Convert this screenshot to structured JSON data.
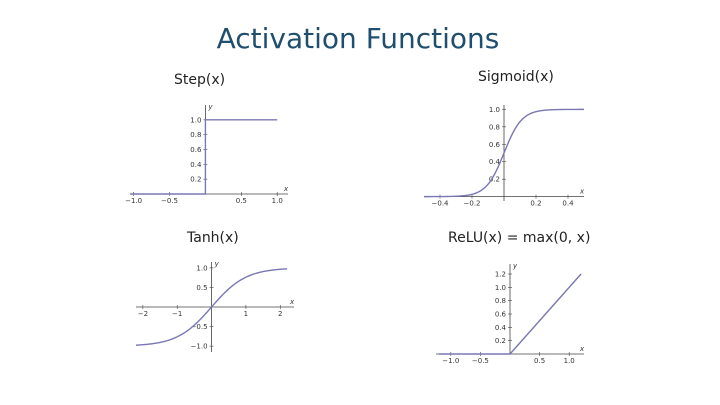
{
  "slide": {
    "title": "Activation Functions"
  },
  "colors": {
    "title": "#1f4e6e",
    "curve": "#7a78b4",
    "axis": "#444444"
  },
  "chart_data": [
    {
      "type": "line",
      "title": "Step(x)",
      "function": "step",
      "xlabel": "x",
      "ylabel": "y",
      "xlim": [
        -1.05,
        1.15
      ],
      "ylim": [
        0,
        1.2
      ],
      "xticks": [
        {
          "value": -1.0,
          "label": "−1.0"
        },
        {
          "value": -0.5,
          "label": "−0.5"
        },
        {
          "value": 0.5,
          "label": "0.5"
        },
        {
          "value": 1.0,
          "label": "1.0"
        }
      ],
      "yticks": [
        {
          "value": 0.2,
          "label": "0.2"
        },
        {
          "value": 0.4,
          "label": "0.4"
        },
        {
          "value": 0.6,
          "label": "0.6"
        },
        {
          "value": 0.8,
          "label": "0.8"
        },
        {
          "value": 1.0,
          "label": "1.0"
        }
      ],
      "domain": [
        -1.05,
        1.0
      ]
    },
    {
      "type": "line",
      "title": "Sigmoid(x)",
      "function": "sigmoid",
      "xlabel": "x",
      "ylabel": "",
      "xlim": [
        -0.5,
        0.5
      ],
      "ylim": [
        -0.05,
        1.05
      ],
      "xticks": [
        {
          "value": -0.4,
          "label": "−0.4"
        },
        {
          "value": -0.2,
          "label": "−0.2"
        },
        {
          "value": 0.2,
          "label": "0.2"
        },
        {
          "value": 0.4,
          "label": "0.4"
        }
      ],
      "yticks": [
        {
          "value": 0.2,
          "label": "0.2"
        },
        {
          "value": 0.4,
          "label": "0.4"
        },
        {
          "value": 0.6,
          "label": "0.6"
        },
        {
          "value": 0.8,
          "label": "0.8"
        },
        {
          "value": 1.0,
          "label": "1.0"
        }
      ],
      "domain": [
        -0.5,
        0.5
      ]
    },
    {
      "type": "line",
      "title": "Tanh(x)",
      "function": "tanh",
      "xlabel": "x",
      "ylabel": "y",
      "xlim": [
        -2.2,
        2.4
      ],
      "ylim": [
        -1.15,
        1.15
      ],
      "xticks": [
        {
          "value": -2,
          "label": "−2"
        },
        {
          "value": -1,
          "label": "−1"
        },
        {
          "value": 1,
          "label": "1"
        },
        {
          "value": 2,
          "label": "2"
        }
      ],
      "yticks": [
        {
          "value": -1.0,
          "label": "−1.0"
        },
        {
          "value": -0.5,
          "label": "−0.5"
        },
        {
          "value": 0.5,
          "label": "0.5"
        },
        {
          "value": 1.0,
          "label": "1.0"
        }
      ],
      "domain": [
        -2.2,
        2.2
      ]
    },
    {
      "type": "line",
      "title": "ReLU(x) = max(0, x)",
      "function": "relu",
      "xlabel": "x",
      "ylabel": "y",
      "xlim": [
        -1.25,
        1.25
      ],
      "ylim": [
        0,
        1.35
      ],
      "xticks": [
        {
          "value": -1.0,
          "label": "−1.0"
        },
        {
          "value": -0.5,
          "label": "−0.5"
        },
        {
          "value": 0.5,
          "label": "0.5"
        },
        {
          "value": 1.0,
          "label": "1.0"
        }
      ],
      "yticks": [
        {
          "value": 0.2,
          "label": "0.2"
        },
        {
          "value": 0.4,
          "label": "0.4"
        },
        {
          "value": 0.6,
          "label": "0.6"
        },
        {
          "value": 0.8,
          "label": "0.8"
        },
        {
          "value": 1.0,
          "label": "1.0"
        },
        {
          "value": 1.2,
          "label": "1.2"
        }
      ],
      "domain": [
        -1.2,
        1.2
      ]
    }
  ]
}
